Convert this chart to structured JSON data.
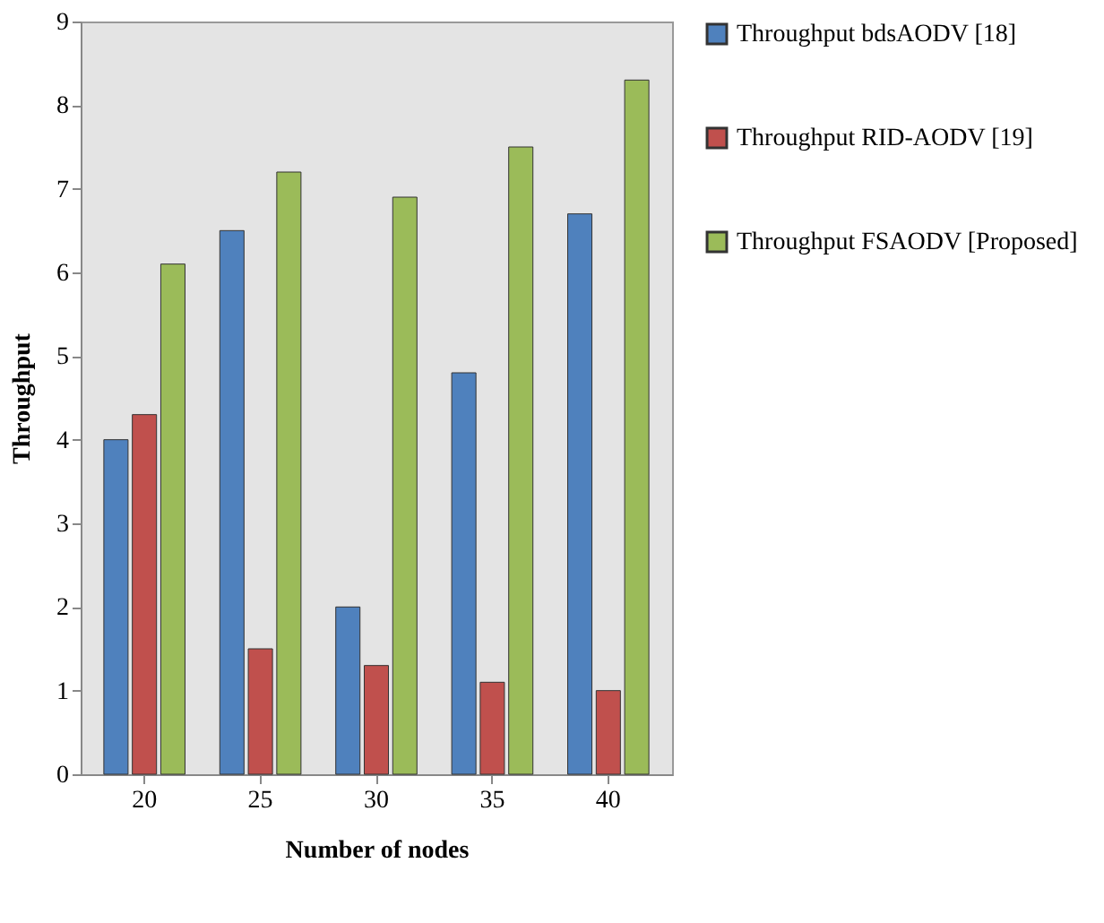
{
  "chart_data": {
    "type": "bar",
    "xlabel": "Number of nodes",
    "ylabel": "Throughput",
    "categories": [
      "20",
      "25",
      "30",
      "35",
      "40"
    ],
    "series": [
      {
        "name": "Throughput bdsAODV [18]",
        "color": "#4f81bd",
        "values": [
          4.0,
          6.5,
          2.0,
          4.8,
          6.7
        ]
      },
      {
        "name": "Throughput RID-AODV [19]",
        "color": "#c0504d",
        "values": [
          4.3,
          1.5,
          1.3,
          1.1,
          1.0
        ]
      },
      {
        "name": "Throughput FSAODV [Proposed]",
        "color": "#9bbb59",
        "values": [
          6.1,
          7.2,
          6.9,
          7.5,
          8.3
        ]
      }
    ],
    "ylim": [
      0,
      9
    ],
    "yticks": [
      0,
      1,
      2,
      3,
      4,
      5,
      6,
      7,
      8,
      9
    ],
    "grid": false,
    "legend": "right"
  }
}
